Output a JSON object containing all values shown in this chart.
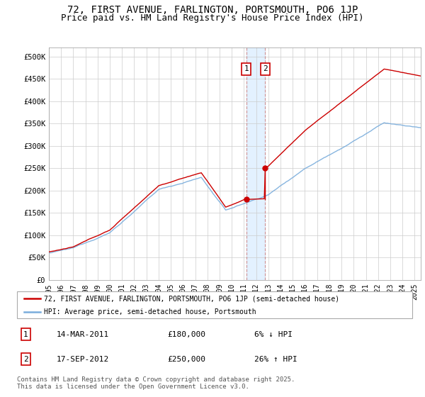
{
  "title": "72, FIRST AVENUE, FARLINGTON, PORTSMOUTH, PO6 1JP",
  "subtitle": "Price paid vs. HM Land Registry's House Price Index (HPI)",
  "title_fontsize": 10,
  "subtitle_fontsize": 9,
  "ylabel_ticks": [
    "£0",
    "£50K",
    "£100K",
    "£150K",
    "£200K",
    "£250K",
    "£300K",
    "£350K",
    "£400K",
    "£450K",
    "£500K"
  ],
  "ylabel_values": [
    0,
    50000,
    100000,
    150000,
    200000,
    250000,
    300000,
    350000,
    400000,
    450000,
    500000
  ],
  "ylim_max": 520000,
  "x_start_year": 1995,
  "x_end_year": 2025,
  "sale1_date": 2011.2,
  "sale1_price": 180000,
  "sale1_label": "1",
  "sale2_date": 2012.72,
  "sale2_price": 250000,
  "sale2_label": "2",
  "red_line_color": "#cc0000",
  "blue_line_color": "#7aaddc",
  "annotation_box_color": "#cc0000",
  "shaded_region_color": "#ddeeff",
  "legend_label_red": "72, FIRST AVENUE, FARLINGTON, PORTSMOUTH, PO6 1JP (semi-detached house)",
  "legend_label_blue": "HPI: Average price, semi-detached house, Portsmouth",
  "footnote": "Contains HM Land Registry data © Crown copyright and database right 2025.\nThis data is licensed under the Open Government Licence v3.0.",
  "table_rows": [
    {
      "num": "1",
      "date": "14-MAR-2011",
      "price": "£180,000",
      "pct": "6% ↓ HPI"
    },
    {
      "num": "2",
      "date": "17-SEP-2012",
      "price": "£250,000",
      "pct": "26% ↑ HPI"
    }
  ]
}
